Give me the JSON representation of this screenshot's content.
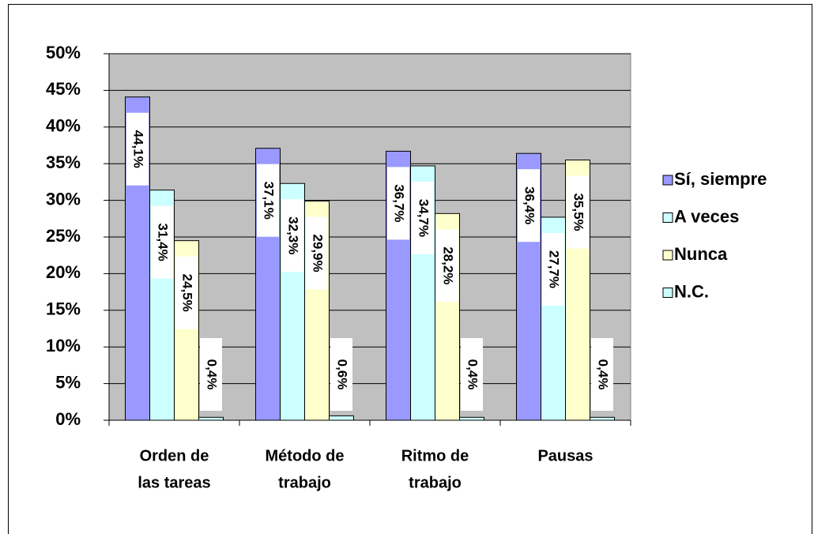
{
  "chart_data": {
    "type": "bar",
    "categories": [
      [
        "Orden de",
        "las tareas"
      ],
      [
        "Método de",
        "trabajo"
      ],
      [
        "Ritmo de",
        "trabajo"
      ],
      [
        "Pausas"
      ]
    ],
    "series": [
      {
        "name": "Sí, siempre",
        "color": "#9999ff",
        "values": [
          44.1,
          37.1,
          36.7,
          36.4
        ],
        "value_labels": [
          "44,1%",
          "37,1%",
          "36,7%",
          "36,4%"
        ]
      },
      {
        "name": "A veces",
        "color": "#ccffff",
        "values": [
          31.4,
          32.3,
          34.7,
          27.7
        ],
        "value_labels": [
          "31,4%",
          "32,3%",
          "34,7%",
          "27,7%"
        ]
      },
      {
        "name": "Nunca",
        "color": "#ffffcc",
        "values": [
          24.5,
          29.9,
          28.2,
          35.5
        ],
        "value_labels": [
          "24,5%",
          "29,9%",
          "28,2%",
          "35,5%"
        ]
      },
      {
        "name": "N.C.",
        "color": "#ccffff",
        "values": [
          0.4,
          0.6,
          0.4,
          0.4
        ],
        "value_labels": [
          "0,4%",
          "0,6%",
          "0,4%",
          "0,4%"
        ]
      }
    ],
    "ylim": [
      0,
      50
    ],
    "yticks": [
      {
        "value": 0,
        "label": "0%"
      },
      {
        "value": 5,
        "label": "5%"
      },
      {
        "value": 10,
        "label": "10%"
      },
      {
        "value": 15,
        "label": "15%"
      },
      {
        "value": 20,
        "label": "20%"
      },
      {
        "value": 25,
        "label": "25%"
      },
      {
        "value": 30,
        "label": "30%"
      },
      {
        "value": 35,
        "label": "35%"
      },
      {
        "value": 40,
        "label": "40%"
      },
      {
        "value": 45,
        "label": "45%"
      },
      {
        "value": 50,
        "label": "50%"
      }
    ],
    "grid": true,
    "legend": "right",
    "plot_background": "#c0c0c0"
  }
}
